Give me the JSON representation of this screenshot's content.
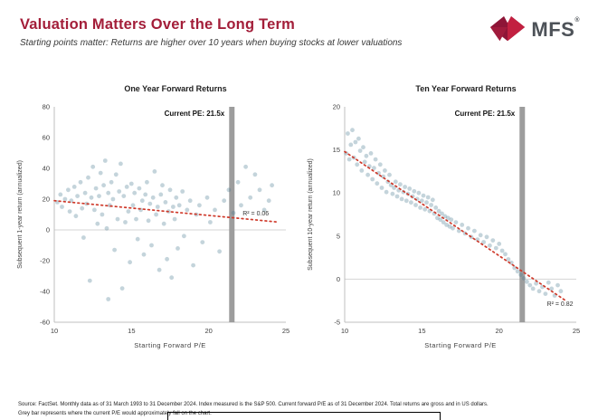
{
  "header": {
    "title": "Valuation Matters Over the Long Term",
    "subtitle": "Starting points matter: Returns are higher over 10 years when buying stocks at lower valuations"
  },
  "logo": {
    "text": "MFS",
    "registered": "®"
  },
  "style": {
    "accent": "#A31E39",
    "point_color": "#46798f",
    "point_opacity": 0.32,
    "trend_color": "#cf3a2b",
    "bar_color": "#9d9d9d",
    "axis_color": "#bfbfbf",
    "zero_line_color": "#d4d4d4",
    "tick_color": "#404040"
  },
  "footer": {
    "line1": "Source: FactSet. Monthly data as of 31 March 1993 to 31 December 2024. Index measured is the S&P 500. Current forward P/E as of 31 December 2024. Total returns are gross and in  US dollars.",
    "line2": "Grey bar represents where the current  P/E  would approximately fall on the chart."
  },
  "chart_data": [
    {
      "type": "scatter",
      "title": "One Year Forward Returns",
      "xlabel": "Starting  Forward  P/E",
      "ylabel": "Subsequent 1-year return (annualized)",
      "xlim": [
        10,
        25
      ],
      "ylim": [
        -60,
        80
      ],
      "xticks": [
        10,
        15,
        20,
        25
      ],
      "yticks": [
        -60,
        -40,
        -20,
        0,
        20,
        40,
        60,
        80
      ],
      "current_pe": 21.5,
      "current_pe_label": "Current PE: 21.5x",
      "r2_label": "R² = 0.06",
      "r2_pos": [
        22.2,
        9.5
      ],
      "trend": [
        [
          10,
          19
        ],
        [
          24.4,
          5.2
        ]
      ],
      "points": [
        [
          10.2,
          18
        ],
        [
          10.4,
          23
        ],
        [
          10.5,
          15
        ],
        [
          10.7,
          20
        ],
        [
          10.9,
          26
        ],
        [
          11.0,
          12
        ],
        [
          11.1,
          19
        ],
        [
          11.3,
          28
        ],
        [
          11.4,
          9
        ],
        [
          11.5,
          22
        ],
        [
          11.7,
          31
        ],
        [
          11.8,
          14
        ],
        [
          11.9,
          -5
        ],
        [
          12.0,
          24
        ],
        [
          12.1,
          17
        ],
        [
          12.2,
          34
        ],
        [
          12.3,
          -33
        ],
        [
          12.4,
          21
        ],
        [
          12.5,
          41
        ],
        [
          12.6,
          13
        ],
        [
          12.7,
          27
        ],
        [
          12.8,
          4
        ],
        [
          12.9,
          22
        ],
        [
          13.0,
          37
        ],
        [
          13.1,
          10
        ],
        [
          13.2,
          29
        ],
        [
          13.3,
          45
        ],
        [
          13.4,
          1
        ],
        [
          13.5,
          -45
        ],
        [
          13.5,
          24
        ],
        [
          13.6,
          16
        ],
        [
          13.7,
          31
        ],
        [
          13.8,
          20
        ],
        [
          13.9,
          -13
        ],
        [
          14.0,
          36
        ],
        [
          14.1,
          7
        ],
        [
          14.2,
          25
        ],
        [
          14.3,
          43
        ],
        [
          14.4,
          -38
        ],
        [
          14.5,
          22
        ],
        [
          14.6,
          5
        ],
        [
          14.7,
          28
        ],
        [
          14.8,
          12
        ],
        [
          14.9,
          -21
        ],
        [
          15.0,
          30
        ],
        [
          15.1,
          16
        ],
        [
          15.2,
          24
        ],
        [
          15.3,
          7
        ],
        [
          15.4,
          -6
        ],
        [
          15.5,
          27
        ],
        [
          15.6,
          13
        ],
        [
          15.7,
          19
        ],
        [
          15.8,
          -16
        ],
        [
          15.9,
          23
        ],
        [
          16.0,
          31
        ],
        [
          16.1,
          6
        ],
        [
          16.2,
          17
        ],
        [
          16.3,
          -10
        ],
        [
          16.4,
          21
        ],
        [
          16.5,
          38
        ],
        [
          16.6,
          10
        ],
        [
          16.7,
          15
        ],
        [
          16.8,
          -26
        ],
        [
          16.9,
          23
        ],
        [
          17.0,
          29
        ],
        [
          17.1,
          4
        ],
        [
          17.2,
          18
        ],
        [
          17.3,
          -19
        ],
        [
          17.4,
          12
        ],
        [
          17.5,
          26
        ],
        [
          17.6,
          -31
        ],
        [
          17.7,
          15
        ],
        [
          17.8,
          7
        ],
        [
          17.9,
          21
        ],
        [
          18.0,
          -12
        ],
        [
          18.1,
          16
        ],
        [
          18.3,
          25
        ],
        [
          18.4,
          -4
        ],
        [
          18.6,
          13
        ],
        [
          18.8,
          19
        ],
        [
          19.0,
          -23
        ],
        [
          19.2,
          10
        ],
        [
          19.4,
          16
        ],
        [
          19.6,
          -8
        ],
        [
          19.9,
          21
        ],
        [
          20.1,
          5
        ],
        [
          20.4,
          13
        ],
        [
          20.7,
          -14
        ],
        [
          21.0,
          19
        ],
        [
          21.3,
          26
        ],
        [
          21.6,
          11
        ],
        [
          21.9,
          31
        ],
        [
          22.1,
          16
        ],
        [
          22.4,
          41
        ],
        [
          22.7,
          21
        ],
        [
          23.0,
          36
        ],
        [
          23.3,
          26
        ],
        [
          23.6,
          13
        ],
        [
          23.9,
          19
        ],
        [
          24.1,
          29
        ]
      ]
    },
    {
      "type": "scatter",
      "title": "Ten Year Forward Returns",
      "xlabel": "Starting  Forward  P/E",
      "ylabel": "Subsequent 10-year return (annualized)",
      "xlim": [
        10,
        25
      ],
      "ylim": [
        -5,
        20
      ],
      "xticks": [
        10,
        15,
        20,
        25
      ],
      "yticks": [
        -5,
        0,
        5,
        10,
        15,
        20
      ],
      "current_pe": 21.5,
      "current_pe_label": "Current PE: 21.5x",
      "r2_label": "R² = 0.82",
      "r2_pos": [
        23.1,
        -3.1
      ],
      "trend": [
        [
          10,
          14.8
        ],
        [
          24.4,
          -2.6
        ]
      ],
      "points": [
        [
          10.1,
          14.6
        ],
        [
          10.2,
          16.9
        ],
        [
          10.3,
          13.9
        ],
        [
          10.4,
          15.6
        ],
        [
          10.5,
          17.3
        ],
        [
          10.6,
          14.1
        ],
        [
          10.7,
          15.9
        ],
        [
          10.8,
          13.3
        ],
        [
          10.9,
          16.3
        ],
        [
          11.0,
          14.9
        ],
        [
          11.1,
          12.6
        ],
        [
          11.2,
          15.3
        ],
        [
          11.3,
          13.6
        ],
        [
          11.4,
          14.3
        ],
        [
          11.5,
          12.1
        ],
        [
          11.6,
          13.1
        ],
        [
          11.7,
          14.6
        ],
        [
          11.8,
          11.6
        ],
        [
          11.9,
          12.9
        ],
        [
          12.0,
          13.9
        ],
        [
          12.1,
          11.1
        ],
        [
          12.2,
          12.3
        ],
        [
          12.3,
          13.3
        ],
        [
          12.4,
          10.6
        ],
        [
          12.5,
          11.9
        ],
        [
          12.6,
          12.6
        ],
        [
          12.7,
          10.1
        ],
        [
          12.8,
          11.3
        ],
        [
          12.9,
          12.1
        ],
        [
          13.0,
          10.9
        ],
        [
          13.1,
          9.9
        ],
        [
          13.2,
          10.6
        ],
        [
          13.3,
          11.3
        ],
        [
          13.4,
          9.6
        ],
        [
          13.5,
          10.3
        ],
        [
          13.6,
          11.0
        ],
        [
          13.7,
          9.3
        ],
        [
          13.8,
          10.1
        ],
        [
          13.9,
          10.7
        ],
        [
          14.0,
          9.1
        ],
        [
          14.1,
          9.9
        ],
        [
          14.2,
          10.5
        ],
        [
          14.3,
          8.9
        ],
        [
          14.4,
          9.6
        ],
        [
          14.5,
          10.2
        ],
        [
          14.6,
          8.6
        ],
        [
          14.7,
          9.3
        ],
        [
          14.8,
          10.0
        ],
        [
          14.9,
          8.3
        ],
        [
          15.0,
          9.1
        ],
        [
          15.1,
          9.7
        ],
        [
          15.2,
          8.1
        ],
        [
          15.3,
          8.9
        ],
        [
          15.4,
          9.5
        ],
        [
          15.5,
          7.9
        ],
        [
          15.6,
          8.6
        ],
        [
          15.7,
          9.2
        ],
        [
          15.8,
          7.6
        ],
        [
          15.9,
          8.3
        ],
        [
          16.0,
          7.1
        ],
        [
          16.1,
          7.9
        ],
        [
          16.2,
          6.9
        ],
        [
          16.3,
          7.6
        ],
        [
          16.4,
          6.6
        ],
        [
          16.5,
          7.3
        ],
        [
          16.6,
          6.3
        ],
        [
          16.7,
          7.1
        ],
        [
          16.8,
          6.1
        ],
        [
          16.9,
          6.9
        ],
        [
          17.0,
          5.9
        ],
        [
          17.2,
          6.6
        ],
        [
          17.4,
          5.6
        ],
        [
          17.6,
          6.3
        ],
        [
          17.8,
          5.3
        ],
        [
          18.0,
          5.9
        ],
        [
          18.2,
          4.9
        ],
        [
          18.4,
          5.6
        ],
        [
          18.6,
          4.6
        ],
        [
          18.8,
          5.1
        ],
        [
          19.0,
          4.3
        ],
        [
          19.2,
          4.9
        ],
        [
          19.4,
          3.9
        ],
        [
          19.6,
          4.5
        ],
        [
          19.8,
          3.6
        ],
        [
          20.0,
          4.1
        ],
        [
          20.2,
          3.3
        ],
        [
          20.4,
          2.9
        ],
        [
          20.6,
          2.3
        ],
        [
          20.8,
          1.9
        ],
        [
          21.0,
          1.3
        ],
        [
          21.2,
          0.9
        ],
        [
          21.4,
          0.5
        ],
        [
          21.6,
          0.1
        ],
        [
          21.8,
          -0.3
        ],
        [
          22.0,
          -0.7
        ],
        [
          22.2,
          -1.1
        ],
        [
          22.4,
          -0.5
        ],
        [
          22.6,
          -1.4
        ],
        [
          22.8,
          -0.9
        ],
        [
          23.0,
          -1.7
        ],
        [
          23.2,
          -0.4
        ],
        [
          23.4,
          -1.1
        ],
        [
          23.6,
          -1.9
        ],
        [
          23.8,
          -0.7
        ],
        [
          24.0,
          -1.4
        ]
      ]
    }
  ]
}
